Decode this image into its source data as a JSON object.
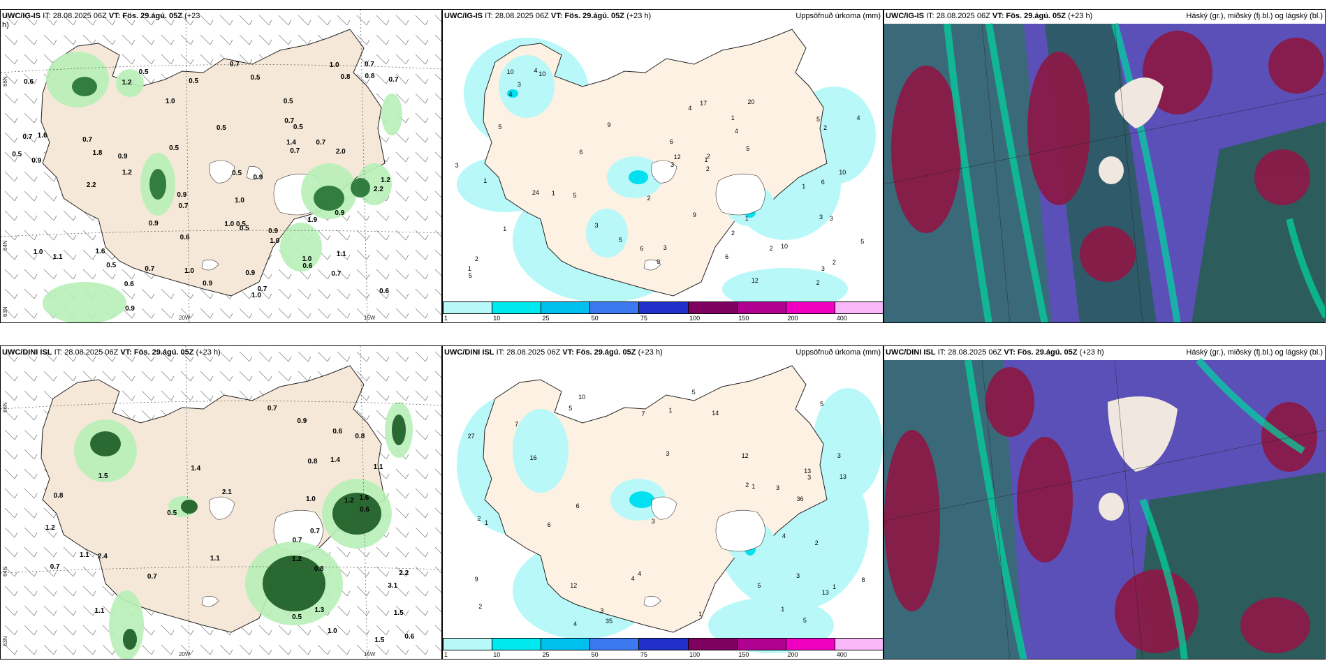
{
  "panels": {
    "p1": {
      "model": "UWC/IG-IS",
      "it": "IT: 28.08.2025 06Z",
      "vt": "VT: Fös. 29.ágú. 05Z",
      "lead": "(+23",
      "lead2": "h)"
    },
    "p2": {
      "model": "UWC/IG-IS",
      "it": "IT: 28.08.2025 06Z",
      "vt": "VT: Fös. 29.ágú. 05Z",
      "lead": "(+23 h)",
      "right": "Uppsöfnuð úrkoma (mm)"
    },
    "p3": {
      "model": "UWC/IG-IS",
      "it": "IT: 28.08.2025 06Z",
      "vt": "VT: Fös. 29.ágú. 05Z",
      "lead": "(+23 h)",
      "right": "Háský (gr.), miðský (fj.bl.) og lágský (bl.)"
    },
    "p4": {
      "model": "UWC/DINI ISL",
      "it": "IT: 28.08.2025 06Z",
      "vt": "VT: Fös. 29.ágú. 05Z",
      "lead": "(+23 h)"
    },
    "p5": {
      "model": "UWC/DINI ISL",
      "it": "IT: 28.08.2025 06Z",
      "vt": "VT: Fös. 29.ágú. 05Z",
      "lead": "(+23 h)",
      "right": "Uppsöfnuð úrkoma (mm)"
    },
    "p6": {
      "model": "UWC/DINI ISL",
      "it": "IT: 28.08.2025 06Z",
      "vt": "VT: Fös. 29.ágú. 05Z",
      "lead": "(+23 h)",
      "right": "Háský (gr.), miðský (fj.bl.) og lágský (bl.)"
    }
  },
  "grid_labels": {
    "lat66": "66N",
    "lat64": "64N",
    "lat63": "63N",
    "lon20": "20W",
    "lon15": "15W"
  },
  "colorbar": {
    "ticks": [
      "1",
      "10",
      "25",
      "50",
      "75",
      "100",
      "150",
      "200",
      "400"
    ],
    "colors": [
      "#b8f8f8",
      "#00e8f0",
      "#00c0f0",
      "#3c78f0",
      "#2030c8",
      "#800060",
      "#b00090",
      "#f000c0",
      "#f8b8f8"
    ]
  },
  "top_wind_labels": [
    "0.7",
    "1.2",
    "1.6",
    "0.7",
    "0.7",
    "0.9",
    "2.2",
    "1.2",
    "0.7",
    "0.5",
    "1.1",
    "0.7",
    "0.9",
    "0.5",
    "0.7",
    "1.0",
    "0.9",
    "0.8",
    "1.9",
    "2.0",
    "1.0",
    "0.5",
    "0.6",
    "0.6",
    "0.9",
    "0.5",
    "2.2",
    "1.8",
    "0.9",
    "1.0",
    "1.0",
    "0.7",
    "0.5",
    "0.7",
    "0.5",
    "1.0",
    "0.7",
    "1.6",
    "1.2",
    "0.9",
    "0.5",
    "0.5",
    "0.7",
    "1.1",
    "0.5",
    "0.9",
    "1.0",
    "0.6",
    "1.0",
    "0.8",
    "0.9",
    "0.5",
    "0.9",
    "0.7",
    "0.6",
    "0.6",
    "0.7",
    "0.5",
    "0.9",
    "1.0",
    "0.5",
    "1.0",
    "1.4"
  ],
  "bot_wind_labels": [
    "1.2",
    "2.2",
    "1.2",
    "3.1",
    "0.5",
    "1.4",
    "1.6",
    "2.1",
    "1.5",
    "1.0",
    "0.7",
    "0.7",
    "0.7",
    "0.8",
    "0.7",
    "1.5",
    "0.8",
    "1.1",
    "0.6",
    "1.4",
    "1.1",
    "1.2",
    "1.0",
    "0.9",
    "0.6",
    "1.1",
    "1.5",
    "0.8",
    "0.6",
    "2.4",
    "1.1",
    "0.7",
    "0.8",
    "1.3",
    "0.5"
  ],
  "top_rain_labels": [
    "1",
    "2",
    "3",
    "5",
    "17",
    "10",
    "6",
    "4",
    "3",
    "2",
    "10",
    "9",
    "6",
    "9",
    "10",
    "5",
    "2",
    "5",
    "3",
    "1",
    "24",
    "20",
    "6",
    "9",
    "4",
    "3",
    "2",
    "6",
    "4",
    "5",
    "6",
    "1",
    "12",
    "2",
    "5",
    "4",
    "3",
    "2",
    "3",
    "5",
    "1",
    "2",
    "3",
    "4",
    "5",
    "10",
    "12",
    "3",
    "2",
    "1",
    "1",
    "1",
    "1",
    "2"
  ],
  "bot_rain_labels": [
    "3",
    "3",
    "1",
    "3",
    "2",
    "10",
    "13",
    "12",
    "5",
    "16",
    "13",
    "27",
    "36",
    "35",
    "9",
    "7",
    "13",
    "5",
    "4",
    "3",
    "2",
    "1",
    "1",
    "2",
    "3",
    "4",
    "5",
    "14",
    "12",
    "8",
    "6",
    "5",
    "4",
    "3",
    "2",
    "1",
    "1",
    "7",
    "5",
    "6",
    "4",
    "3",
    "1"
  ]
}
